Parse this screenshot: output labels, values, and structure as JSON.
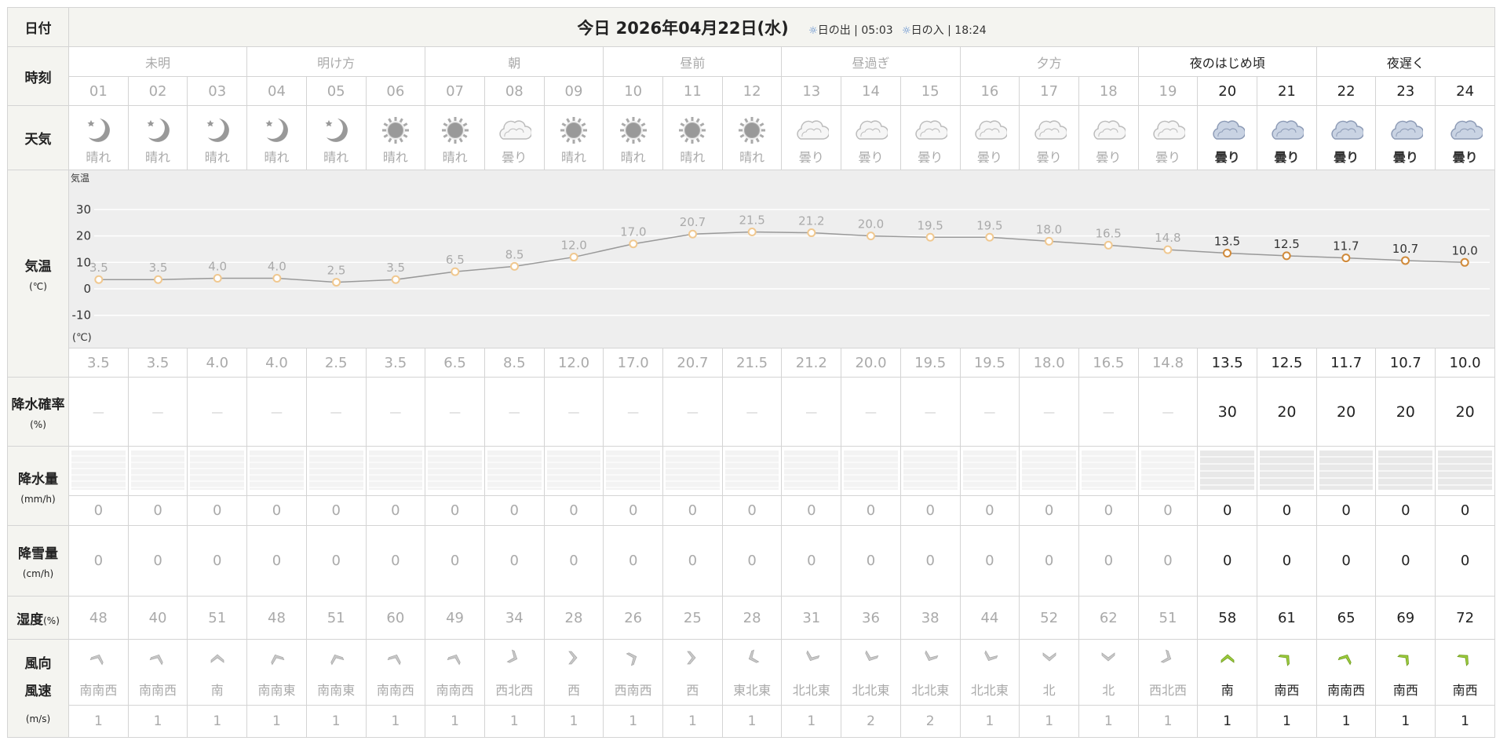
{
  "date_label": "日付",
  "date_title": "今日 2026年04月22日(水)",
  "sunrise_label": "日の出",
  "sunrise": "05:03",
  "sunset_label": "日の入",
  "sunset": "18:24",
  "labels": {
    "time": "時刻",
    "weather": "天気",
    "temp": "気温",
    "temp_unit": "(℃)",
    "prob": "降水確率",
    "prob_unit": "(%)",
    "precip": "降水量",
    "precip_unit": "(mm/h)",
    "snow": "降雪量",
    "snow_unit": "(cm/h)",
    "humidity": "湿度",
    "humidity_unit": "(%)",
    "wind_dir": "風向",
    "wind_speed": "風速",
    "wind_unit": "(m/s)"
  },
  "periods": [
    {
      "label": "未明",
      "span": 3
    },
    {
      "label": "明け方",
      "span": 3
    },
    {
      "label": "朝",
      "span": 3
    },
    {
      "label": "昼前",
      "span": 3
    },
    {
      "label": "昼過ぎ",
      "span": 3
    },
    {
      "label": "夕方",
      "span": 3
    },
    {
      "label": "夜のはじめ頃",
      "span": 3,
      "future": true
    },
    {
      "label": "夜遅く",
      "span": 3,
      "future": true
    }
  ],
  "hours": [
    "01",
    "02",
    "03",
    "04",
    "05",
    "06",
    "07",
    "08",
    "09",
    "10",
    "11",
    "12",
    "13",
    "14",
    "15",
    "16",
    "17",
    "18",
    "19",
    "20",
    "21",
    "22",
    "23",
    "24"
  ],
  "future_from_index": 19,
  "weather": [
    {
      "icon": "moon-icon",
      "text": "晴れ"
    },
    {
      "icon": "moon-icon",
      "text": "晴れ"
    },
    {
      "icon": "moon-icon",
      "text": "晴れ"
    },
    {
      "icon": "moon-icon",
      "text": "晴れ"
    },
    {
      "icon": "moon-icon",
      "text": "晴れ"
    },
    {
      "icon": "sun-icon",
      "text": "晴れ"
    },
    {
      "icon": "sun-icon",
      "text": "晴れ"
    },
    {
      "icon": "cloud-icon",
      "text": "曇り"
    },
    {
      "icon": "sun-icon",
      "text": "晴れ"
    },
    {
      "icon": "sun-icon",
      "text": "晴れ"
    },
    {
      "icon": "sun-icon",
      "text": "晴れ"
    },
    {
      "icon": "sun-icon",
      "text": "晴れ"
    },
    {
      "icon": "cloud-icon",
      "text": "曇り"
    },
    {
      "icon": "cloud-icon",
      "text": "曇り"
    },
    {
      "icon": "cloud-icon",
      "text": "曇り"
    },
    {
      "icon": "cloud-icon",
      "text": "曇り"
    },
    {
      "icon": "cloud-icon",
      "text": "曇り"
    },
    {
      "icon": "cloud-icon",
      "text": "曇り"
    },
    {
      "icon": "cloud-icon",
      "text": "曇り"
    },
    {
      "icon": "cloud-icon",
      "text": "曇り"
    },
    {
      "icon": "cloud-icon",
      "text": "曇り"
    },
    {
      "icon": "cloud-icon",
      "text": "曇り"
    },
    {
      "icon": "cloud-icon",
      "text": "曇り"
    },
    {
      "icon": "cloud-icon",
      "text": "曇り"
    }
  ],
  "chart_data": {
    "type": "line",
    "ylabel": "気温",
    "yunit": "(℃)",
    "ylim": [
      -10,
      30
    ],
    "yticks": [
      30,
      20,
      10,
      0,
      -10
    ],
    "x": [
      "01",
      "02",
      "03",
      "04",
      "05",
      "06",
      "07",
      "08",
      "09",
      "10",
      "11",
      "12",
      "13",
      "14",
      "15",
      "16",
      "17",
      "18",
      "19",
      "20",
      "21",
      "22",
      "23",
      "24"
    ],
    "values": [
      3.5,
      3.5,
      4.0,
      4.0,
      2.5,
      3.5,
      6.5,
      8.5,
      12.0,
      17.0,
      20.7,
      21.5,
      21.2,
      20.0,
      19.5,
      19.5,
      18.0,
      16.5,
      14.8,
      13.5,
      12.5,
      11.7,
      10.7,
      10.0
    ],
    "colors": {
      "past_point": "#f0c890",
      "future_point": "#d08a3a",
      "line": "#999999",
      "grid": "#ffffff"
    }
  },
  "temps": [
    "3.5",
    "3.5",
    "4.0",
    "4.0",
    "2.5",
    "3.5",
    "6.5",
    "8.5",
    "12.0",
    "17.0",
    "20.7",
    "21.5",
    "21.2",
    "20.0",
    "19.5",
    "19.5",
    "18.0",
    "16.5",
    "14.8",
    "13.5",
    "12.5",
    "11.7",
    "10.7",
    "10.0"
  ],
  "prob": [
    "—",
    "—",
    "—",
    "—",
    "—",
    "—",
    "—",
    "—",
    "—",
    "—",
    "—",
    "—",
    "—",
    "—",
    "—",
    "—",
    "—",
    "—",
    "—",
    "30",
    "20",
    "20",
    "20",
    "20"
  ],
  "precip": [
    "0",
    "0",
    "0",
    "0",
    "0",
    "0",
    "0",
    "0",
    "0",
    "0",
    "0",
    "0",
    "0",
    "0",
    "0",
    "0",
    "0",
    "0",
    "0",
    "0",
    "0",
    "0",
    "0",
    "0"
  ],
  "snow": [
    "0",
    "0",
    "0",
    "0",
    "0",
    "0",
    "0",
    "0",
    "0",
    "0",
    "0",
    "0",
    "0",
    "0",
    "0",
    "0",
    "0",
    "0",
    "0",
    "0",
    "0",
    "0",
    "0",
    "0"
  ],
  "humidity": [
    "48",
    "40",
    "51",
    "48",
    "51",
    "60",
    "49",
    "34",
    "28",
    "26",
    "25",
    "28",
    "31",
    "36",
    "38",
    "44",
    "52",
    "62",
    "51",
    "58",
    "61",
    "65",
    "69",
    "72"
  ],
  "wind_dir": [
    "南南西",
    "南南西",
    "南",
    "南南東",
    "南南東",
    "南南西",
    "南南西",
    "西北西",
    "西",
    "西南西",
    "西",
    "東北東",
    "北北東",
    "北北東",
    "北北東",
    "北北東",
    "北",
    "北",
    "西北西",
    "南",
    "南西",
    "南南西",
    "南西",
    "南西"
  ],
  "wind_speed": [
    "1",
    "1",
    "1",
    "1",
    "1",
    "1",
    "1",
    "1",
    "1",
    "1",
    "1",
    "1",
    "1",
    "2",
    "2",
    "1",
    "1",
    "1",
    "1",
    "1",
    "1",
    "1",
    "1",
    "1"
  ],
  "colors": {
    "future_arrow": "#9ccc3c",
    "past_arrow": "#c8c8c8",
    "header_bg": "#f4f4f0",
    "chart_bg": "#eeeeee"
  }
}
